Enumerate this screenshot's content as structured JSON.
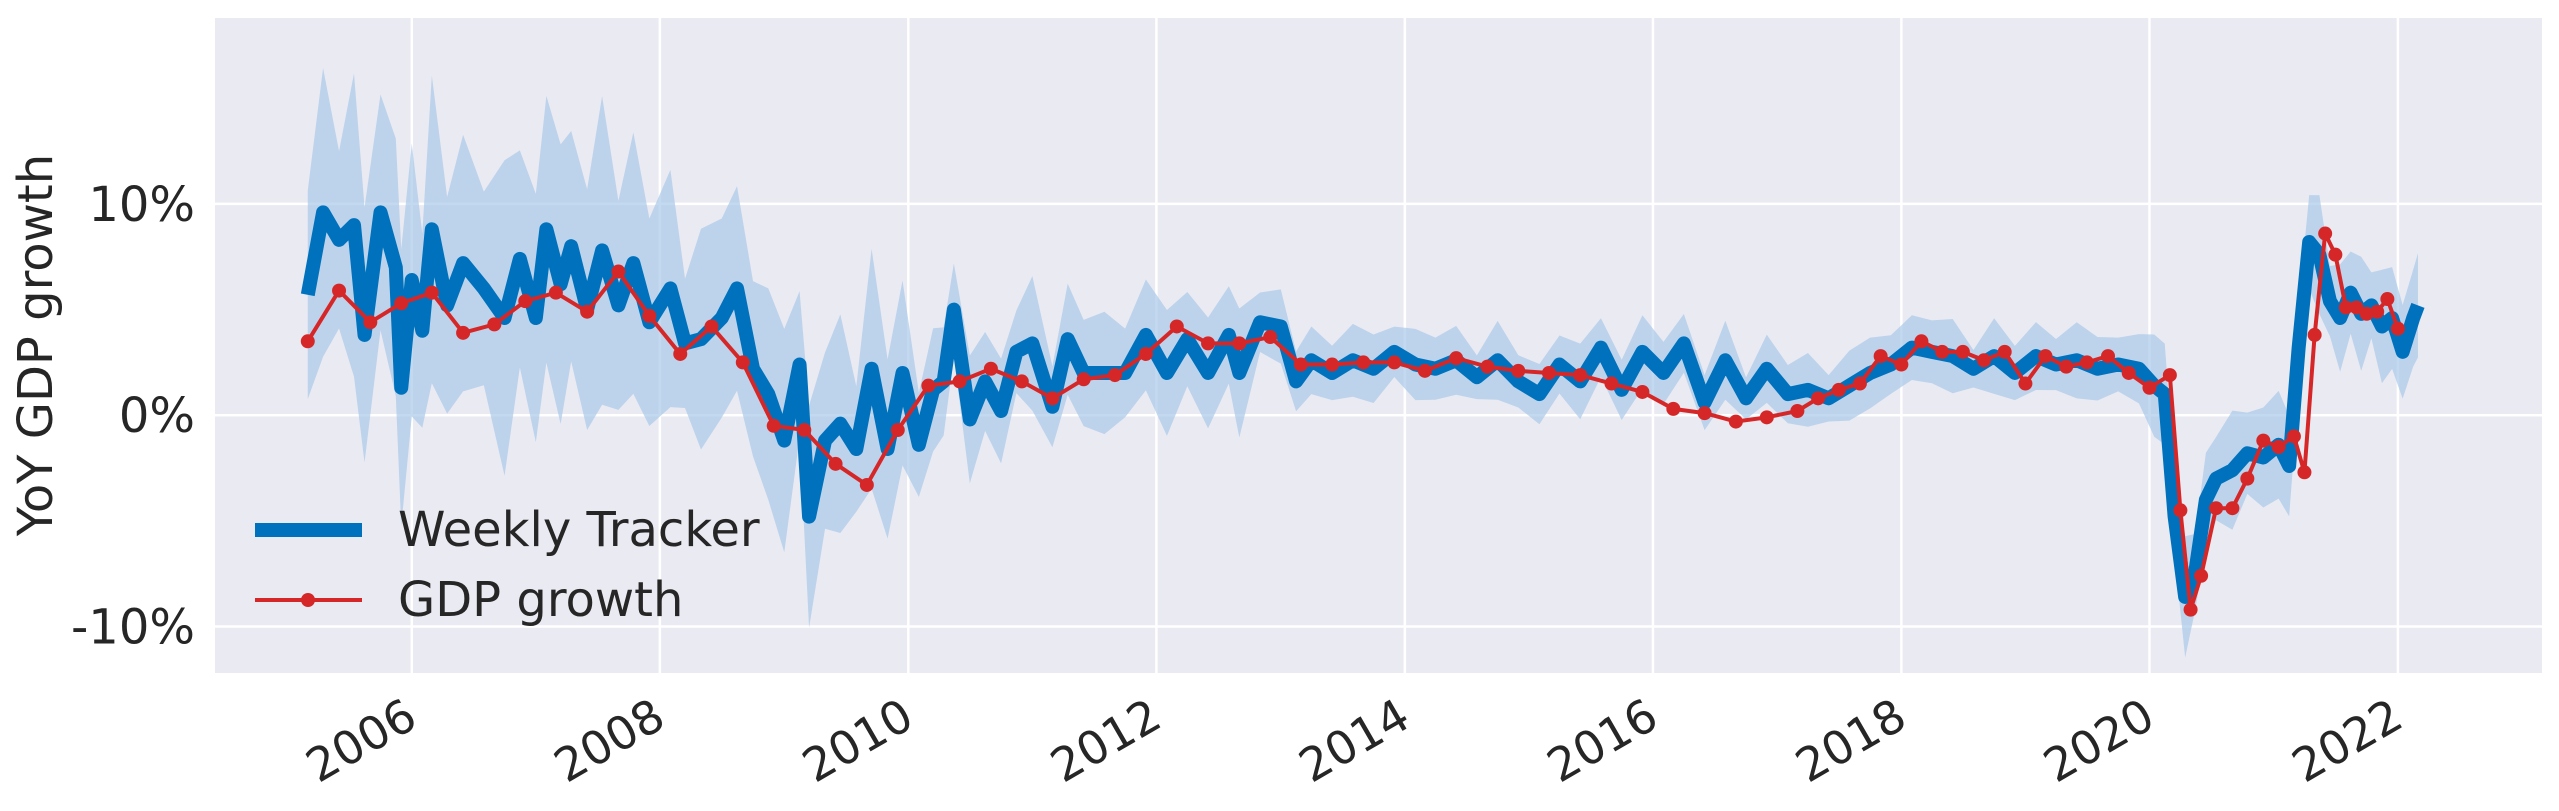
{
  "chart_data": {
    "type": "line",
    "ylabel": "YoY GDP growth",
    "xlabel": "",
    "title": "",
    "x_range": [
      "2004-06-01",
      "2023-03-01"
    ],
    "ylim": [
      -12.2,
      18.8
    ],
    "x_ticks": [
      {
        "date": "2006-01-01",
        "label": "2006"
      },
      {
        "date": "2008-01-01",
        "label": "2008"
      },
      {
        "date": "2010-01-01",
        "label": "2010"
      },
      {
        "date": "2012-01-01",
        "label": "2012"
      },
      {
        "date": "2014-01-01",
        "label": "2014"
      },
      {
        "date": "2016-01-01",
        "label": "2016"
      },
      {
        "date": "2018-01-01",
        "label": "2018"
      },
      {
        "date": "2020-01-01",
        "label": "2020"
      },
      {
        "date": "2022-01-01",
        "label": "2022"
      }
    ],
    "y_ticks": [
      {
        "value": 10,
        "label": "10%"
      },
      {
        "value": 0,
        "label": "0%"
      },
      {
        "value": -10,
        "label": "-10%"
      }
    ],
    "grid": true,
    "legend_position": "lower-left",
    "series": [
      {
        "name": "Weekly Tracker",
        "color": "#0072bd",
        "band_color": "#a9c9e8",
        "points": [
          [
            "2005-03-01",
            5.7
          ],
          [
            "2005-04-15",
            9.6
          ],
          [
            "2005-06-01",
            8.3
          ],
          [
            "2005-07-15",
            9.0
          ],
          [
            "2005-08-15",
            3.8
          ],
          [
            "2005-10-01",
            9.6
          ],
          [
            "2005-11-15",
            7.0
          ],
          [
            "2005-12-01",
            1.3
          ],
          [
            "2006-01-01",
            6.4
          ],
          [
            "2006-02-01",
            4.0
          ],
          [
            "2006-03-01",
            8.8
          ],
          [
            "2006-04-15",
            5.2
          ],
          [
            "2006-06-01",
            7.2
          ],
          [
            "2006-08-01",
            6.0
          ],
          [
            "2006-10-01",
            4.6
          ],
          [
            "2006-11-15",
            7.4
          ],
          [
            "2007-01-01",
            4.6
          ],
          [
            "2007-02-01",
            8.8
          ],
          [
            "2007-03-15",
            6.2
          ],
          [
            "2007-04-15",
            8.0
          ],
          [
            "2007-06-01",
            5.0
          ],
          [
            "2007-07-15",
            7.8
          ],
          [
            "2007-09-01",
            5.2
          ],
          [
            "2007-10-15",
            7.2
          ],
          [
            "2007-12-01",
            4.4
          ],
          [
            "2008-02-01",
            6.0
          ],
          [
            "2008-03-15",
            3.4
          ],
          [
            "2008-05-01",
            3.6
          ],
          [
            "2008-07-01",
            4.6
          ],
          [
            "2008-08-15",
            6.0
          ],
          [
            "2008-10-01",
            2.2
          ],
          [
            "2008-11-15",
            1.0
          ],
          [
            "2009-01-01",
            -1.2
          ],
          [
            "2009-02-15",
            2.4
          ],
          [
            "2009-03-15",
            -4.8
          ],
          [
            "2009-05-01",
            -1.2
          ],
          [
            "2009-06-15",
            -0.4
          ],
          [
            "2009-08-01",
            -1.6
          ],
          [
            "2009-09-15",
            2.2
          ],
          [
            "2009-11-01",
            -1.6
          ],
          [
            "2009-12-15",
            2.0
          ],
          [
            "2010-02-01",
            -1.4
          ],
          [
            "2010-03-15",
            1.2
          ],
          [
            "2010-04-15",
            1.6
          ],
          [
            "2010-05-15",
            5.0
          ],
          [
            "2010-07-01",
            -0.2
          ],
          [
            "2010-08-15",
            1.6
          ],
          [
            "2010-10-01",
            0.2
          ],
          [
            "2010-11-15",
            3.0
          ],
          [
            "2011-01-01",
            3.4
          ],
          [
            "2011-03-01",
            0.4
          ],
          [
            "2011-04-15",
            3.6
          ],
          [
            "2011-06-01",
            2.0
          ],
          [
            "2011-08-01",
            2.0
          ],
          [
            "2011-10-01",
            2.0
          ],
          [
            "2011-12-01",
            3.8
          ],
          [
            "2012-02-01",
            2.0
          ],
          [
            "2012-04-01",
            3.6
          ],
          [
            "2012-06-01",
            2.0
          ],
          [
            "2012-08-01",
            3.8
          ],
          [
            "2012-09-01",
            2.0
          ],
          [
            "2012-11-01",
            4.4
          ],
          [
            "2013-01-01",
            4.2
          ],
          [
            "2013-02-15",
            1.6
          ],
          [
            "2013-04-01",
            2.6
          ],
          [
            "2013-06-01",
            2.0
          ],
          [
            "2013-08-01",
            2.6
          ],
          [
            "2013-10-01",
            2.2
          ],
          [
            "2013-12-01",
            3.0
          ],
          [
            "2014-02-01",
            2.4
          ],
          [
            "2014-04-01",
            2.2
          ],
          [
            "2014-06-01",
            2.6
          ],
          [
            "2014-08-01",
            1.8
          ],
          [
            "2014-10-01",
            2.6
          ],
          [
            "2014-12-01",
            1.6
          ],
          [
            "2015-02-01",
            1.0
          ],
          [
            "2015-04-01",
            2.4
          ],
          [
            "2015-06-01",
            1.6
          ],
          [
            "2015-08-01",
            3.2
          ],
          [
            "2015-10-01",
            1.2
          ],
          [
            "2015-12-01",
            3.0
          ],
          [
            "2016-02-01",
            2.0
          ],
          [
            "2016-04-01",
            3.4
          ],
          [
            "2016-06-01",
            0.6
          ],
          [
            "2016-08-01",
            2.6
          ],
          [
            "2016-10-01",
            0.8
          ],
          [
            "2016-12-01",
            2.2
          ],
          [
            "2017-02-01",
            1.0
          ],
          [
            "2017-04-01",
            1.2
          ],
          [
            "2017-06-01",
            0.8
          ],
          [
            "2017-08-01",
            1.4
          ],
          [
            "2017-10-01",
            2.0
          ],
          [
            "2017-12-01",
            2.4
          ],
          [
            "2018-02-01",
            3.2
          ],
          [
            "2018-04-01",
            3.0
          ],
          [
            "2018-06-01",
            2.8
          ],
          [
            "2018-08-01",
            2.2
          ],
          [
            "2018-10-01",
            2.8
          ],
          [
            "2018-12-01",
            2.0
          ],
          [
            "2019-02-01",
            2.8
          ],
          [
            "2019-04-01",
            2.4
          ],
          [
            "2019-06-01",
            2.6
          ],
          [
            "2019-08-01",
            2.2
          ],
          [
            "2019-10-01",
            2.4
          ],
          [
            "2019-12-01",
            2.2
          ],
          [
            "2020-01-15",
            1.4
          ],
          [
            "2020-02-15",
            1.0
          ],
          [
            "2020-03-15",
            -4.8
          ],
          [
            "2020-04-15",
            -8.6
          ],
          [
            "2020-05-15",
            -7.4
          ],
          [
            "2020-06-15",
            -4.0
          ],
          [
            "2020-07-15",
            -3.0
          ],
          [
            "2020-09-01",
            -2.6
          ],
          [
            "2020-10-15",
            -1.8
          ],
          [
            "2020-12-01",
            -2.0
          ],
          [
            "2021-01-15",
            -1.4
          ],
          [
            "2021-02-15",
            -2.4
          ],
          [
            "2021-03-15",
            3.2
          ],
          [
            "2021-04-15",
            8.2
          ],
          [
            "2021-05-15",
            7.6
          ],
          [
            "2021-06-15",
            5.4
          ],
          [
            "2021-07-15",
            4.6
          ],
          [
            "2021-08-15",
            5.8
          ],
          [
            "2021-09-15",
            4.8
          ],
          [
            "2021-10-15",
            5.2
          ],
          [
            "2021-11-15",
            4.2
          ],
          [
            "2021-12-15",
            4.6
          ],
          [
            "2022-01-15",
            3.0
          ],
          [
            "2022-02-15",
            4.6
          ],
          [
            "2022-03-01",
            5.2
          ]
        ]
      },
      {
        "name": "GDP growth",
        "color": "#d62728",
        "points": [
          [
            "2005-03-01",
            3.5
          ],
          [
            "2005-06-01",
            5.9
          ],
          [
            "2005-09-01",
            4.4
          ],
          [
            "2005-12-01",
            5.3
          ],
          [
            "2006-03-01",
            5.8
          ],
          [
            "2006-06-01",
            3.9
          ],
          [
            "2006-09-01",
            4.3
          ],
          [
            "2006-12-01",
            5.4
          ],
          [
            "2007-03-01",
            5.8
          ],
          [
            "2007-06-01",
            4.9
          ],
          [
            "2007-09-01",
            6.8
          ],
          [
            "2007-12-01",
            4.7
          ],
          [
            "2008-03-01",
            2.9
          ],
          [
            "2008-06-01",
            4.2
          ],
          [
            "2008-09-01",
            2.5
          ],
          [
            "2008-12-01",
            -0.5
          ],
          [
            "2009-03-01",
            -0.7
          ],
          [
            "2009-06-01",
            -2.3
          ],
          [
            "2009-09-01",
            -3.3
          ],
          [
            "2009-12-01",
            -0.7
          ],
          [
            "2010-03-01",
            1.4
          ],
          [
            "2010-06-01",
            1.6
          ],
          [
            "2010-09-01",
            2.2
          ],
          [
            "2010-12-01",
            1.6
          ],
          [
            "2011-03-01",
            0.8
          ],
          [
            "2011-06-01",
            1.7
          ],
          [
            "2011-09-01",
            1.9
          ],
          [
            "2011-12-01",
            2.9
          ],
          [
            "2012-03-01",
            4.2
          ],
          [
            "2012-06-01",
            3.4
          ],
          [
            "2012-09-01",
            3.4
          ],
          [
            "2012-12-01",
            3.7
          ],
          [
            "2013-03-01",
            2.4
          ],
          [
            "2013-06-01",
            2.4
          ],
          [
            "2013-09-01",
            2.5
          ],
          [
            "2013-12-01",
            2.5
          ],
          [
            "2014-03-01",
            2.1
          ],
          [
            "2014-06-01",
            2.7
          ],
          [
            "2014-09-01",
            2.3
          ],
          [
            "2014-12-01",
            2.1
          ],
          [
            "2015-03-01",
            2.0
          ],
          [
            "2015-06-01",
            1.9
          ],
          [
            "2015-09-01",
            1.5
          ],
          [
            "2015-12-01",
            1.1
          ],
          [
            "2016-03-01",
            0.3
          ],
          [
            "2016-06-01",
            0.1
          ],
          [
            "2016-09-01",
            -0.3
          ],
          [
            "2016-12-01",
            -0.1
          ],
          [
            "2017-03-01",
            0.2
          ],
          [
            "2017-05-01",
            0.8
          ],
          [
            "2017-07-01",
            1.2
          ],
          [
            "2017-09-01",
            1.5
          ],
          [
            "2017-11-01",
            2.8
          ],
          [
            "2018-01-01",
            2.4
          ],
          [
            "2018-03-01",
            3.5
          ],
          [
            "2018-05-01",
            3.0
          ],
          [
            "2018-07-01",
            3.0
          ],
          [
            "2018-09-01",
            2.6
          ],
          [
            "2018-11-01",
            3.0
          ],
          [
            "2019-01-01",
            1.5
          ],
          [
            "2019-03-01",
            2.8
          ],
          [
            "2019-05-01",
            2.3
          ],
          [
            "2019-07-01",
            2.5
          ],
          [
            "2019-09-01",
            2.8
          ],
          [
            "2019-11-01",
            2.0
          ],
          [
            "2020-01-01",
            1.3
          ],
          [
            "2020-03-01",
            1.9
          ],
          [
            "2020-04-01",
            -4.5
          ],
          [
            "2020-05-01",
            -9.2
          ],
          [
            "2020-06-01",
            -7.6
          ],
          [
            "2020-07-15",
            -4.4
          ],
          [
            "2020-09-01",
            -4.4
          ],
          [
            "2020-10-15",
            -3.0
          ],
          [
            "2020-12-01",
            -1.2
          ],
          [
            "2021-01-15",
            -1.5
          ],
          [
            "2021-03-01",
            -1.0
          ],
          [
            "2021-04-01",
            -2.7
          ],
          [
            "2021-05-01",
            3.8
          ],
          [
            "2021-06-01",
            8.6
          ],
          [
            "2021-07-01",
            7.6
          ],
          [
            "2021-08-01",
            5.1
          ],
          [
            "2021-09-01",
            5.1
          ],
          [
            "2021-10-01",
            4.8
          ],
          [
            "2021-11-01",
            4.9
          ],
          [
            "2021-12-01",
            5.5
          ],
          [
            "2022-01-01",
            4.1
          ]
        ]
      }
    ]
  }
}
